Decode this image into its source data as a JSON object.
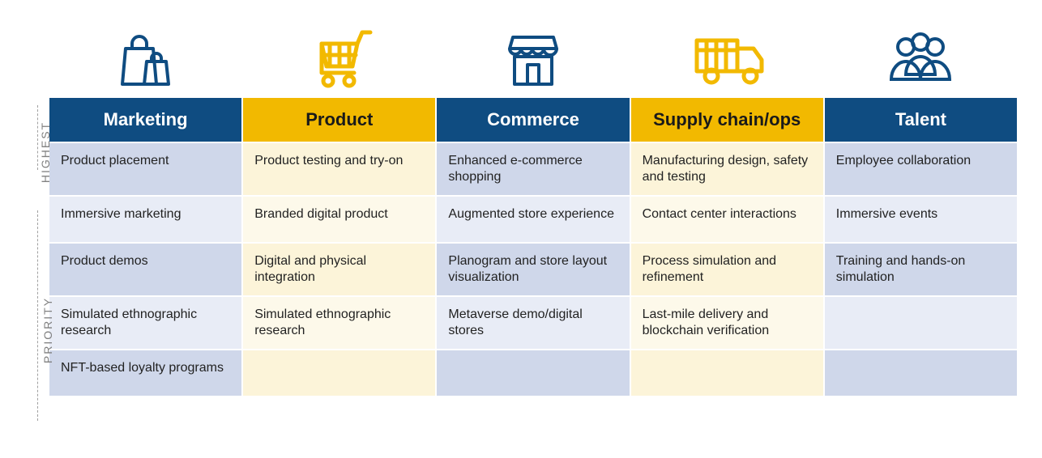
{
  "axis": {
    "highest": "HIGHEST",
    "priority": "PRIORITY"
  },
  "colors": {
    "header_blue": "#0f4c81",
    "header_yellow": "#f2b900",
    "blue_row_a": "#cfd7ea",
    "blue_row_b": "#e8ecf6",
    "cream_row_a": "#fcf4d9",
    "cream_row_b": "#fdf9ea",
    "text_dark": "#222222",
    "icon_blue": "#0f4c81",
    "icon_yellow": "#f2b900"
  },
  "columns": [
    {
      "key": "marketing",
      "label": "Marketing",
      "header_color": "blue",
      "rows": [
        "Product placement",
        "Immersive marketing",
        "Product demos",
        "Simulated ethnographic research",
        "NFT-based loyalty programs"
      ]
    },
    {
      "key": "product",
      "label": "Product",
      "header_color": "yellow",
      "rows": [
        "Product testing and try-on",
        "Branded digital product",
        "Digital and physical integration",
        "Simulated ethnographic research",
        ""
      ]
    },
    {
      "key": "commerce",
      "label": "Commerce",
      "header_color": "blue",
      "rows": [
        "Enhanced e-commerce shopping",
        "Augmented store experience",
        "Planogram and store layout visualization",
        "Metaverse  demo/digital stores",
        ""
      ]
    },
    {
      "key": "supply",
      "label": "Supply chain/ops",
      "header_color": "yellow",
      "rows": [
        "Manufacturing design, safety and testing",
        "Contact center interactions",
        "Process simulation and refinement",
        "Last-mile delivery and blockchain verification",
        ""
      ]
    },
    {
      "key": "talent",
      "label": "Talent",
      "header_color": "blue",
      "rows": [
        "Employee collaboration",
        "Immersive events",
        "Training and hands-on simulation",
        "",
        ""
      ]
    }
  ],
  "headercolor_text": {
    "blue": "#ffffff",
    "yellow": "#1a1a1a"
  }
}
